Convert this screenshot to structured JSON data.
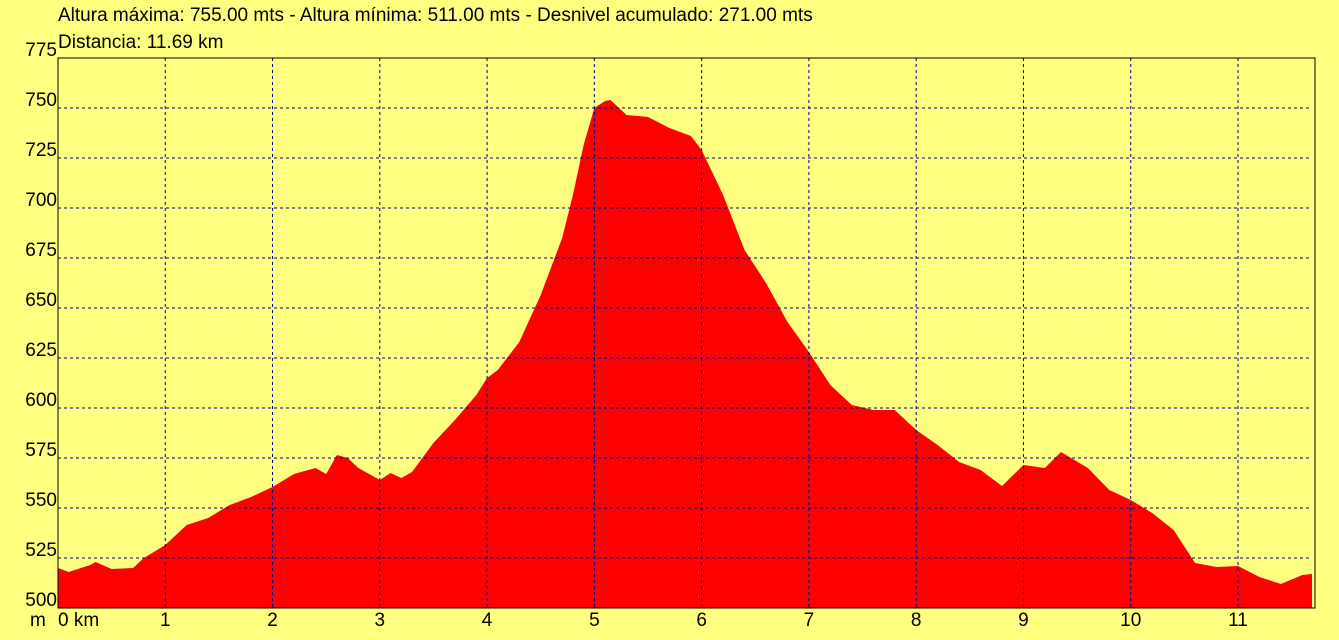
{
  "chart_data": {
    "type": "area",
    "title": "Altura máxima: 755.00 mts - Altura mínima: 511.00 mts - Desnivel acumulado: 271.00 mts",
    "subtitle": "Distancia: 11.69 km",
    "y_label": "m",
    "color": "#ff0000",
    "background": "#ffff80",
    "grid": true,
    "x": [
      0,
      0.1,
      0.3,
      0.35,
      0.5,
      0.7,
      0.8,
      1.0,
      1.2,
      1.4,
      1.6,
      1.8,
      2.0,
      2.2,
      2.4,
      2.5,
      2.6,
      2.7,
      2.8,
      3.0,
      3.1,
      3.2,
      3.3,
      3.5,
      3.7,
      3.9,
      4.0,
      4.1,
      4.3,
      4.5,
      4.7,
      4.8,
      4.9,
      5.0,
      5.1,
      5.15,
      5.3,
      5.5,
      5.7,
      5.9,
      6.0,
      6.2,
      6.4,
      6.6,
      6.8,
      7.0,
      7.2,
      7.4,
      7.6,
      7.8,
      8.0,
      8.2,
      8.4,
      8.6,
      8.8,
      9.0,
      9.2,
      9.35,
      9.6,
      9.8,
      10.0,
      10.2,
      10.4,
      10.6,
      10.8,
      11.0,
      11.2,
      11.4,
      11.6,
      11.69
    ],
    "values": [
      520,
      518,
      521.5,
      523,
      519.5,
      520,
      525,
      531.5,
      541.5,
      545,
      551.5,
      555.5,
      560.5,
      567,
      570,
      567,
      576.5,
      575,
      570,
      564,
      567.5,
      565,
      568,
      582.5,
      594,
      606.5,
      615,
      619,
      633,
      656.5,
      685,
      706.5,
      731.5,
      750,
      753.5,
      754,
      746.5,
      745.5,
      740,
      736,
      729,
      706.5,
      679,
      662.5,
      643,
      628,
      611.5,
      601.5,
      599,
      599,
      589,
      581.5,
      573,
      569,
      561,
      571.5,
      570,
      578,
      570,
      559,
      554,
      547.5,
      539,
      522.5,
      520.5,
      521,
      515.5,
      512,
      516.5,
      517
    ],
    "xlim": [
      0,
      11.69
    ],
    "xticks": [
      {
        "value": 0,
        "label": "0 km"
      },
      1,
      2,
      3,
      4,
      5,
      6,
      7,
      8,
      9,
      10,
      11
    ],
    "ylim": [
      500,
      775
    ],
    "yticks": [
      500,
      525,
      550,
      575,
      600,
      625,
      650,
      675,
      700,
      725,
      750,
      775
    ]
  }
}
